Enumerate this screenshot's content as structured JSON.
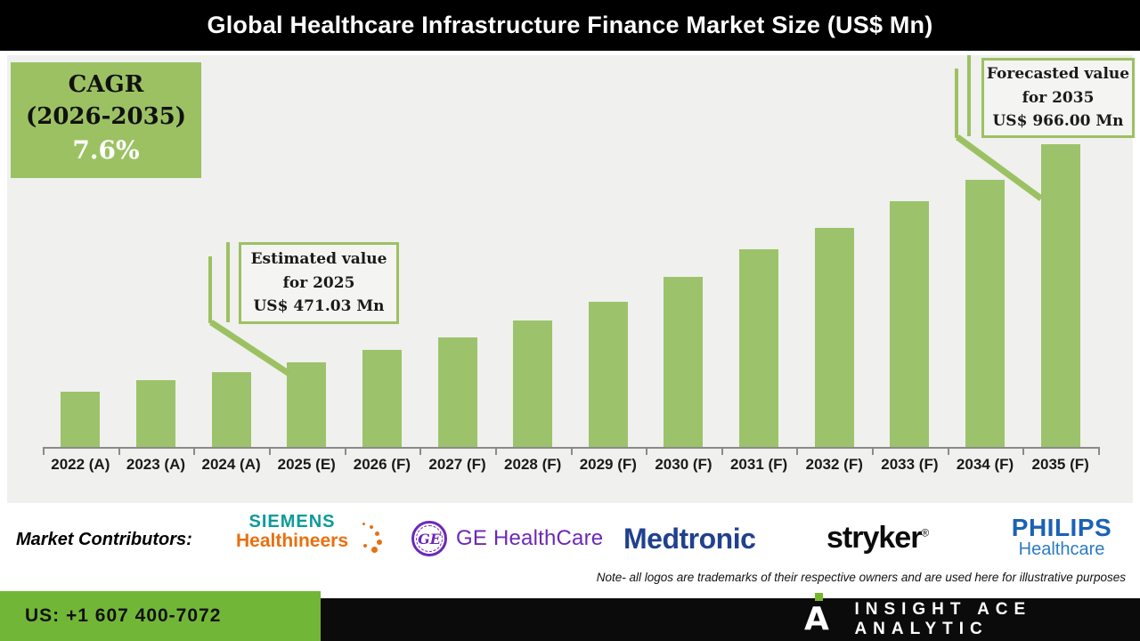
{
  "title": "Global Healthcare Infrastructure Finance Market Size (US$ Mn)",
  "cagr_box": {
    "line1": "CAGR",
    "line2": "(2026-2035)",
    "value": "7.6%"
  },
  "callouts": {
    "estimated": {
      "line1": "Estimated value",
      "line2": "for 2025",
      "line3": "US$ 471.03 Mn"
    },
    "forecast": {
      "line1": "Forecasted value",
      "line2": "for 2035",
      "line3": "US$ 966.00 Mn"
    }
  },
  "chart_data": {
    "type": "bar",
    "title": "Global Healthcare Infrastructure Finance Market Size (US$ Mn)",
    "xlabel": "",
    "ylabel": "US$ Mn",
    "categories": [
      "2022 (A)",
      "2023 (A)",
      "2024 (A)",
      "2025 (E)",
      "2026 (F)",
      "2027 (F)",
      "2028 (F)",
      "2029 (F)",
      "2030 (F)",
      "2031 (F)",
      "2032 (F)",
      "2033 (F)",
      "2034 (F)",
      "2035 (F)"
    ],
    "values": [
      405,
      431,
      449,
      471.03,
      499,
      529,
      566,
      609,
      665,
      727,
      776,
      836,
      886,
      966.0
    ],
    "labeled_points": [
      {
        "category": "2025 (E)",
        "value": 471.03,
        "label": "Estimated value for 2025 US$ 471.03 Mn"
      },
      {
        "category": "2035 (F)",
        "value": 966.0,
        "label": "Forecasted value for 2035 US$ 966.00 Mn"
      }
    ],
    "cagr": {
      "period": "2026-2035",
      "value_pct": 7.6
    },
    "ylim": [
      280,
      970
    ],
    "grid": false,
    "legend": "none",
    "bar_color": "#9CC36B"
  },
  "contributors": {
    "label": "Market Contributors:",
    "logos": [
      {
        "name": "Siemens Healthineers",
        "line1": "SIEMENS",
        "line2": "Healthineers"
      },
      {
        "name": "GE HealthCare",
        "monogram": "GE",
        "text": "GE HealthCare"
      },
      {
        "name": "Medtronic",
        "text": "Medtronic"
      },
      {
        "name": "Stryker",
        "text": "stryker",
        "reg": "®"
      },
      {
        "name": "Philips Healthcare",
        "line1": "PHILIPS",
        "line2": "Healthcare"
      }
    ]
  },
  "note": "Note- all logos are trademarks of their respective owners and are used here for illustrative purposes",
  "footer": {
    "phone": "US: +1 607 400-7072",
    "brand": "INSIGHT ACE ANALYTIC"
  },
  "colors": {
    "bar_green": "#9CC36B",
    "cagr_box_green": "#9CC163",
    "footer_green": "#72B637",
    "logo_dot_green": "#76B82A",
    "chart_background": "#F0F0EE",
    "title_bar": "#000000",
    "siemens_teal": "#0E9A9A",
    "siemens_orange": "#E8700F",
    "ge_purple": "#6C28B8",
    "medtronic_blue": "#21418E",
    "stryker_black": "#0C0C0C",
    "philips_blue": "#1B62B5",
    "philips_light_blue": "#2B7CC5"
  }
}
